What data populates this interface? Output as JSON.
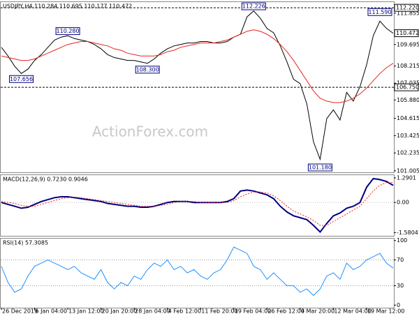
{
  "chart_data": [
    {
      "type": "line",
      "title": "USDJPY,H4  110.284 110.695 110.177 110.472",
      "watermark": "ActionForex.com",
      "ylim": [
        100.9,
        112.66
      ],
      "yticks": [
        {
          "value": 111.855,
          "label": "111.855"
        },
        {
          "value": 109.695,
          "label": "109.695"
        },
        {
          "value": 108.215,
          "label": "108.215"
        },
        {
          "value": 107.035,
          "label": "107.035"
        },
        {
          "value": 105.88,
          "label": "105.880"
        },
        {
          "value": 104.615,
          "label": "104.615"
        },
        {
          "value": 103.425,
          "label": "103.425"
        },
        {
          "value": 102.235,
          "label": "102.235"
        },
        {
          "value": 101.005,
          "label": "101.005"
        }
      ],
      "series": [
        {
          "color": "#000000",
          "values": [
            109.5,
            108.9,
            108.2,
            107.7,
            108.0,
            108.6,
            109.0,
            109.5,
            110.0,
            110.2,
            110.3,
            110.1,
            110.0,
            109.9,
            109.7,
            109.4,
            109.0,
            108.8,
            108.7,
            108.6,
            108.6,
            108.5,
            108.4,
            108.7,
            109.1,
            109.4,
            109.6,
            109.7,
            109.8,
            109.8,
            109.9,
            109.9,
            109.8,
            109.8,
            109.9,
            110.2,
            110.4,
            111.6,
            112.0,
            111.5,
            110.8,
            110.5,
            109.6,
            108.5,
            107.3,
            107.0,
            105.6,
            103.0,
            101.8,
            104.6,
            105.2,
            104.5,
            106.4,
            105.8,
            106.8,
            108.3,
            110.3,
            111.3,
            110.8,
            110.472
          ]
        },
        {
          "color": "#e8231f",
          "values": [
            108.9,
            108.8,
            108.7,
            108.6,
            108.6,
            108.7,
            108.9,
            109.1,
            109.3,
            109.5,
            109.7,
            109.8,
            109.9,
            109.9,
            109.8,
            109.7,
            109.6,
            109.4,
            109.3,
            109.1,
            109.0,
            108.9,
            108.9,
            108.9,
            109.0,
            109.2,
            109.3,
            109.5,
            109.6,
            109.7,
            109.8,
            109.8,
            109.8,
            109.9,
            110.0,
            110.2,
            110.4,
            110.6,
            110.7,
            110.6,
            110.4,
            110.1,
            109.7,
            109.2,
            108.6,
            107.9,
            107.2,
            106.5,
            106.0,
            105.8,
            105.7,
            105.7,
            105.8,
            106.0,
            106.3,
            106.7,
            107.2,
            107.7,
            108.1,
            108.4
          ]
        }
      ],
      "hlines": [
        {
          "value": 112.22,
          "label": "112.220"
        },
        {
          "value": 106.75,
          "label": "106.750"
        }
      ],
      "last_price": {
        "value": 110.472,
        "label": "110.472"
      },
      "annotations": [
        {
          "x": 3,
          "value": 107.656,
          "label": "107.656"
        },
        {
          "x": 10,
          "value": 110.28,
          "label": "110.280"
        },
        {
          "x": 22,
          "value": 108.3,
          "label": "108.300"
        },
        {
          "x": 38,
          "value": 112.226,
          "label": "112.226"
        },
        {
          "x": 48,
          "value": 101.18,
          "label": "101.180"
        },
        {
          "x": 57,
          "value": 111.59,
          "label": "111.590"
        }
      ]
    },
    {
      "type": "line",
      "title": "MACD(12,26,9) 0.7230 0.9046",
      "ylim": [
        -1.75,
        1.47
      ],
      "yticks": [
        1.2901,
        {
          "value": 0,
          "label": "0.00"
        },
        -1.5804
      ],
      "series": [
        {
          "color": "#000080",
          "values": [
            0.0,
            -0.1,
            -0.2,
            -0.3,
            -0.25,
            -0.1,
            0.05,
            0.15,
            0.25,
            0.3,
            0.3,
            0.25,
            0.2,
            0.15,
            0.1,
            0.05,
            -0.05,
            -0.1,
            -0.15,
            -0.2,
            -0.2,
            -0.25,
            -0.25,
            -0.2,
            -0.1,
            0.0,
            0.05,
            0.05,
            0.05,
            0.0,
            0.0,
            0.0,
            0.0,
            0.0,
            0.05,
            0.2,
            0.6,
            0.65,
            0.6,
            0.5,
            0.4,
            0.2,
            -0.2,
            -0.5,
            -0.7,
            -0.8,
            -0.9,
            -1.2,
            -1.55,
            -1.1,
            -0.7,
            -0.55,
            -0.3,
            -0.2,
            0.0,
            0.8,
            1.25,
            1.2,
            1.1,
            0.9
          ]
        },
        {
          "color": "#e8231f",
          "dashed": true,
          "values": [
            0.05,
            0.0,
            -0.05,
            -0.15,
            -0.2,
            -0.2,
            -0.1,
            0.0,
            0.1,
            0.2,
            0.25,
            0.28,
            0.25,
            0.2,
            0.15,
            0.1,
            0.05,
            0.0,
            -0.05,
            -0.1,
            -0.15,
            -0.2,
            -0.2,
            -0.2,
            -0.15,
            -0.1,
            0.0,
            0.05,
            0.05,
            0.05,
            0.0,
            0.0,
            0.0,
            0.0,
            0.0,
            0.1,
            0.3,
            0.45,
            0.55,
            0.55,
            0.5,
            0.35,
            0.1,
            -0.2,
            -0.45,
            -0.6,
            -0.75,
            -0.95,
            -1.2,
            -1.2,
            -1.0,
            -0.8,
            -0.6,
            -0.4,
            -0.2,
            0.2,
            0.6,
            0.9,
            1.05,
            1.05
          ]
        }
      ]
    },
    {
      "type": "line",
      "title": "RSI(14) 57.3085",
      "ylim": [
        -4,
        104
      ],
      "yticks": [
        100,
        70,
        30,
        0
      ],
      "series": [
        {
          "color": "#1e90ff",
          "values": [
            60,
            35,
            20,
            25,
            45,
            60,
            65,
            70,
            65,
            60,
            55,
            60,
            50,
            45,
            40,
            55,
            35,
            25,
            35,
            30,
            45,
            40,
            55,
            65,
            60,
            70,
            55,
            60,
            50,
            55,
            45,
            40,
            50,
            55,
            70,
            90,
            85,
            80,
            60,
            55,
            40,
            50,
            40,
            30,
            30,
            20,
            25,
            15,
            25,
            45,
            50,
            40,
            65,
            55,
            60,
            70,
            75,
            80,
            65,
            57.3085
          ]
        }
      ],
      "categories": [
        "26 Dec 2019",
        null,
        null,
        null,
        null,
        "6 Jan 04:00",
        null,
        null,
        null,
        null,
        "13 Jan 12:00",
        null,
        null,
        null,
        null,
        "20 Jan 20:00",
        null,
        null,
        null,
        null,
        "28 Jan 04:00",
        null,
        null,
        null,
        null,
        "4 Feb 12:00",
        null,
        null,
        null,
        null,
        "11 Feb 20:00",
        null,
        null,
        null,
        null,
        "19 Feb 04:00",
        null,
        null,
        null,
        null,
        "26 Feb 12:00",
        null,
        null,
        null,
        null,
        "4 Mar 20:00",
        null,
        null,
        null,
        null,
        "12 Mar 04:00",
        null,
        null,
        null,
        null,
        "19 Mar 12:00",
        null,
        null,
        null,
        null
      ]
    }
  ]
}
